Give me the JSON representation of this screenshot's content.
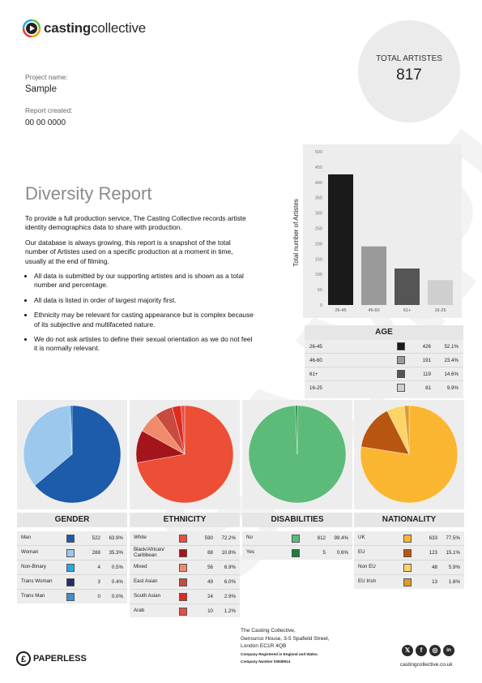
{
  "brand": {
    "name_bold": "casting",
    "name_light": "collective"
  },
  "project": {
    "name_label": "Project name:",
    "name_value": "Sample",
    "created_label": "Report created:",
    "created_value": "00 00 0000"
  },
  "total": {
    "label": "TOTAL ARTISTES",
    "value": "817"
  },
  "watermark": "SAMPLE",
  "report": {
    "title": "Diversity Report",
    "paragraphs": [
      "To provide a full production service, The Casting Collective records artiste identity demographics data to share with production.",
      "Our database is always growing, this report is a snapshot of the total number of Artistes used on a specific production at a moment in time, usually at the end of filming."
    ],
    "bullets": [
      "All data is submitted by our supporting artistes and is shown as a total number and percentage.",
      "All data is listed in order of largest majority first.",
      "Ethnicity may be relevant for casting appearance but is complex because of its subjective and multifaceted nature.",
      "We do not ask artistes to define their sexual orientation as we do not feel it is normally relevant."
    ]
  },
  "chart_data": [
    {
      "type": "bar",
      "title": "AGE",
      "ylabel": "Total number of Artistes",
      "ylim": [
        0,
        500
      ],
      "yticks": [
        "0",
        "50",
        "100",
        "150",
        "200",
        "250",
        "300",
        "350",
        "400",
        "450",
        "500"
      ],
      "categories": [
        "26-45",
        "46-60",
        "61+",
        "16-25"
      ],
      "values": [
        426,
        191,
        119,
        81
      ],
      "percents": [
        "52.1%",
        "23.4%",
        "14.6%",
        "9.9%"
      ],
      "colors": [
        "#1a1a1a",
        "#9a9a9a",
        "#555555",
        "#cfcfcf"
      ]
    },
    {
      "type": "pie",
      "title": "GENDER",
      "categories": [
        "Man",
        "Woman",
        "Non-Binary",
        "Trans Woman",
        "Trans Man"
      ],
      "values": [
        522,
        288,
        4,
        3,
        0
      ],
      "percents": [
        "63.9%",
        "35.3%",
        "0.5%",
        "0.4%",
        "0.0%"
      ],
      "colors": [
        "#1d5bab",
        "#9cc8ee",
        "#29a9df",
        "#1e2d6b",
        "#3f8fd1"
      ]
    },
    {
      "type": "pie",
      "title": "ETHNICITY",
      "categories": [
        "White",
        "Black/African/\nCaribbean",
        "Mixed",
        "East Asian",
        "South Asian",
        "Arab"
      ],
      "values": [
        590,
        88,
        56,
        49,
        24,
        10
      ],
      "percents": [
        "72.2%",
        "10.8%",
        "6.9%",
        "6.0%",
        "2.9%",
        "1.2%"
      ],
      "colors": [
        "#ec4e36",
        "#a3151a",
        "#f08a6a",
        "#c94a3e",
        "#e02a22",
        "#e05046"
      ]
    },
    {
      "type": "pie",
      "title": "DISABILITIES",
      "categories": [
        "No",
        "Yes"
      ],
      "values": [
        812,
        5
      ],
      "percents": [
        "99.4%",
        "0.6%"
      ],
      "colors": [
        "#5dbb7a",
        "#1f7d3b"
      ]
    },
    {
      "type": "pie",
      "title": "NATIONALITY",
      "categories": [
        "UK",
        "EU",
        "Non EU",
        "EU Irish"
      ],
      "values": [
        633,
        123,
        48,
        13
      ],
      "percents": [
        "77.5%",
        "15.1%",
        "5.9%",
        "1.6%"
      ],
      "colors": [
        "#fbb631",
        "#b85511",
        "#fed467",
        "#dd9b2b"
      ]
    }
  ],
  "footer": {
    "paperless": "PAPERLESS",
    "address": [
      "The Casting Collective,",
      "Gensurco House, 3-5 Spafield Street,",
      "London EC1R 4QB"
    ],
    "registered": "Company Registered in England and Wales.",
    "company_number": "Company Number 03838914",
    "social": [
      "x-icon",
      "facebook-icon",
      "instagram-icon",
      "linkedin-icon"
    ],
    "website": "castingcollective.co.uk"
  }
}
